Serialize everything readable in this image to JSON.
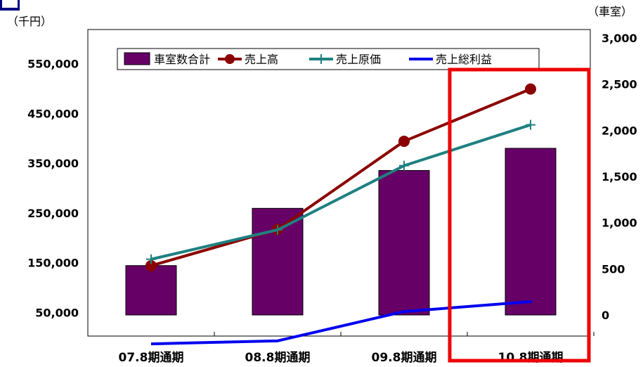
{
  "chart_data": {
    "type": "bar",
    "units": {
      "left": "（千円）",
      "right": "（車室）"
    },
    "categories": [
      "07.8期通期",
      "08.8期通期",
      "09.8期通期",
      "10.8期通期"
    ],
    "y_left": {
      "ticks": [
        "550,000",
        "450,000",
        "350,000",
        "250,000",
        "150,000",
        "50,000"
      ],
      "tick_values": [
        550000,
        450000,
        350000,
        250000,
        150000,
        50000
      ],
      "range": [
        0,
        600000
      ]
    },
    "y_right": {
      "ticks": [
        "3,000",
        "2,500",
        "2,000",
        "1,500",
        "1,000",
        "500",
        "0"
      ],
      "tick_values": [
        3000,
        2500,
        2000,
        1500,
        1000,
        500,
        0
      ],
      "range": [
        -375,
        3000
      ]
    },
    "series": [
      {
        "name": "車室数合計",
        "kind": "bar",
        "axis": "right",
        "color": "#660066",
        "values": [
          535,
          1155,
          1565,
          1805
        ]
      },
      {
        "name": "売上高",
        "kind": "line",
        "axis": "left",
        "color": "#8b0000",
        "marker": "circle",
        "values": [
          144000,
          217000,
          394000,
          499000
        ]
      },
      {
        "name": "売上原価",
        "kind": "line",
        "axis": "left",
        "color": "#1f8080",
        "marker": "plus",
        "values": [
          157000,
          216000,
          345000,
          427000
        ]
      },
      {
        "name": "売上総利益",
        "kind": "line",
        "axis": "left",
        "color": "#0000ee",
        "marker": "none",
        "values": [
          -13000,
          -7000,
          52000,
          72000
        ]
      }
    ],
    "highlight": {
      "category_index": 3,
      "color": "#ee0000"
    },
    "legend_position": "top-center",
    "grid": false
  }
}
